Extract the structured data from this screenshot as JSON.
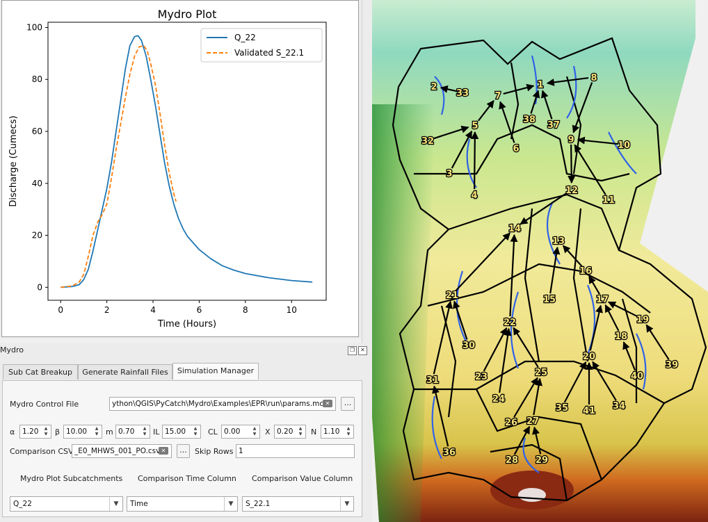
{
  "plot": {
    "title": "Mydro Plot",
    "xlabel": "Time (Hours)",
    "ylabel": "Discharge (Cumecs)",
    "xticks": [
      "0",
      "2",
      "4",
      "6",
      "8",
      "10"
    ],
    "yticks": [
      "0",
      "20",
      "40",
      "60",
      "80",
      "100"
    ],
    "legend": [
      "Q_22",
      "Validated S_22.1"
    ]
  },
  "chart_data": {
    "type": "line",
    "title": "Mydro Plot",
    "xlabel": "Time (Hours)",
    "ylabel": "Discharge (Cumecs)",
    "xlim": [
      -0.55,
      11.5
    ],
    "ylim": [
      -5,
      102
    ],
    "legend_position": "top-right",
    "series": [
      {
        "name": "Q_22",
        "color": "#1f77b4",
        "style": "solid",
        "x": [
          0,
          0.5,
          0.8,
          1.0,
          1.2,
          1.4,
          1.6,
          1.8,
          2.0,
          2.2,
          2.4,
          2.6,
          2.8,
          3.0,
          3.2,
          3.35,
          3.5,
          3.7,
          3.9,
          4.1,
          4.3,
          4.5,
          4.7,
          4.9,
          5.1,
          5.3,
          5.5,
          6.0,
          6.5,
          7.0,
          7.5,
          8.0,
          9.0,
          10.0,
          10.9
        ],
        "y": [
          0,
          0.3,
          1,
          3,
          7,
          14,
          22,
          30,
          38,
          48,
          60,
          72,
          84,
          93,
          96.5,
          96.8,
          95,
          89,
          80,
          70,
          59,
          48,
          39,
          32,
          26.5,
          22.5,
          19.5,
          14.5,
          11,
          8.3,
          6.6,
          5.3,
          3.7,
          2.6,
          2.0
        ]
      },
      {
        "name": "Validated S_22.1",
        "color": "#ff7f0e",
        "style": "dashed",
        "x": [
          0,
          0.5,
          0.8,
          1.0,
          1.2,
          1.4,
          1.6,
          1.8,
          2.0,
          2.2,
          2.4,
          2.6,
          2.8,
          3.0,
          3.2,
          3.4,
          3.6,
          3.75,
          3.9,
          4.1,
          4.3,
          4.5,
          4.7,
          4.9,
          5.0
        ],
        "y": [
          0,
          0.5,
          2,
          5,
          12,
          20,
          25,
          28,
          32,
          42,
          53,
          63,
          73,
          82,
          89,
          92.5,
          93,
          91,
          86,
          78,
          67,
          55,
          44,
          36,
          33
        ]
      }
    ]
  },
  "dock": {
    "title": "Mydro",
    "float_icon": "float-icon",
    "close_icon": "close-icon",
    "tabs": [
      "Sub Cat Breakup",
      "Generate Rainfall Files",
      "Simulation Manager"
    ],
    "active_tab": "Simulation Manager",
    "control_file_label": "Mydro Control File",
    "control_file_value": "ython\\QGIS\\PyCatch\\Mydro\\Examples\\EPR\\run\\params.mcf",
    "browse_label": "...",
    "params": [
      {
        "label": "α",
        "value": "1.20"
      },
      {
        "label": "β",
        "value": "10.00"
      },
      {
        "label": "m",
        "value": "0.70"
      },
      {
        "label": "IL",
        "value": "15.00"
      },
      {
        "label": "CL",
        "value": "0.00"
      },
      {
        "label": "X",
        "value": "0.20"
      },
      {
        "label": "N",
        "value": "1.10"
      }
    ],
    "comparison_csv_label": "Comparison CSV",
    "comparison_csv_value": "_E0_MHWS_001_PO.csv",
    "skip_rows_label": "Skip Rows",
    "skip_rows_value": "1",
    "col_labels": [
      "Mydro Plot Subcatchments",
      "Comparison Time Column",
      "Comparison Value Column"
    ],
    "col_values": [
      "Q_22",
      "Time",
      "S_22.1"
    ]
  },
  "map": {
    "labels": [
      "1",
      "2",
      "3",
      "4",
      "5",
      "6",
      "7",
      "8",
      "9",
      "10",
      "11",
      "12",
      "13",
      "14",
      "15",
      "16",
      "17",
      "18",
      "19",
      "20",
      "21",
      "22",
      "23",
      "24",
      "25",
      "26",
      "27",
      "28",
      "29",
      "30",
      "31",
      "32",
      "33",
      "34",
      "35",
      "36",
      "37",
      "38",
      "39",
      "40",
      "41"
    ]
  }
}
